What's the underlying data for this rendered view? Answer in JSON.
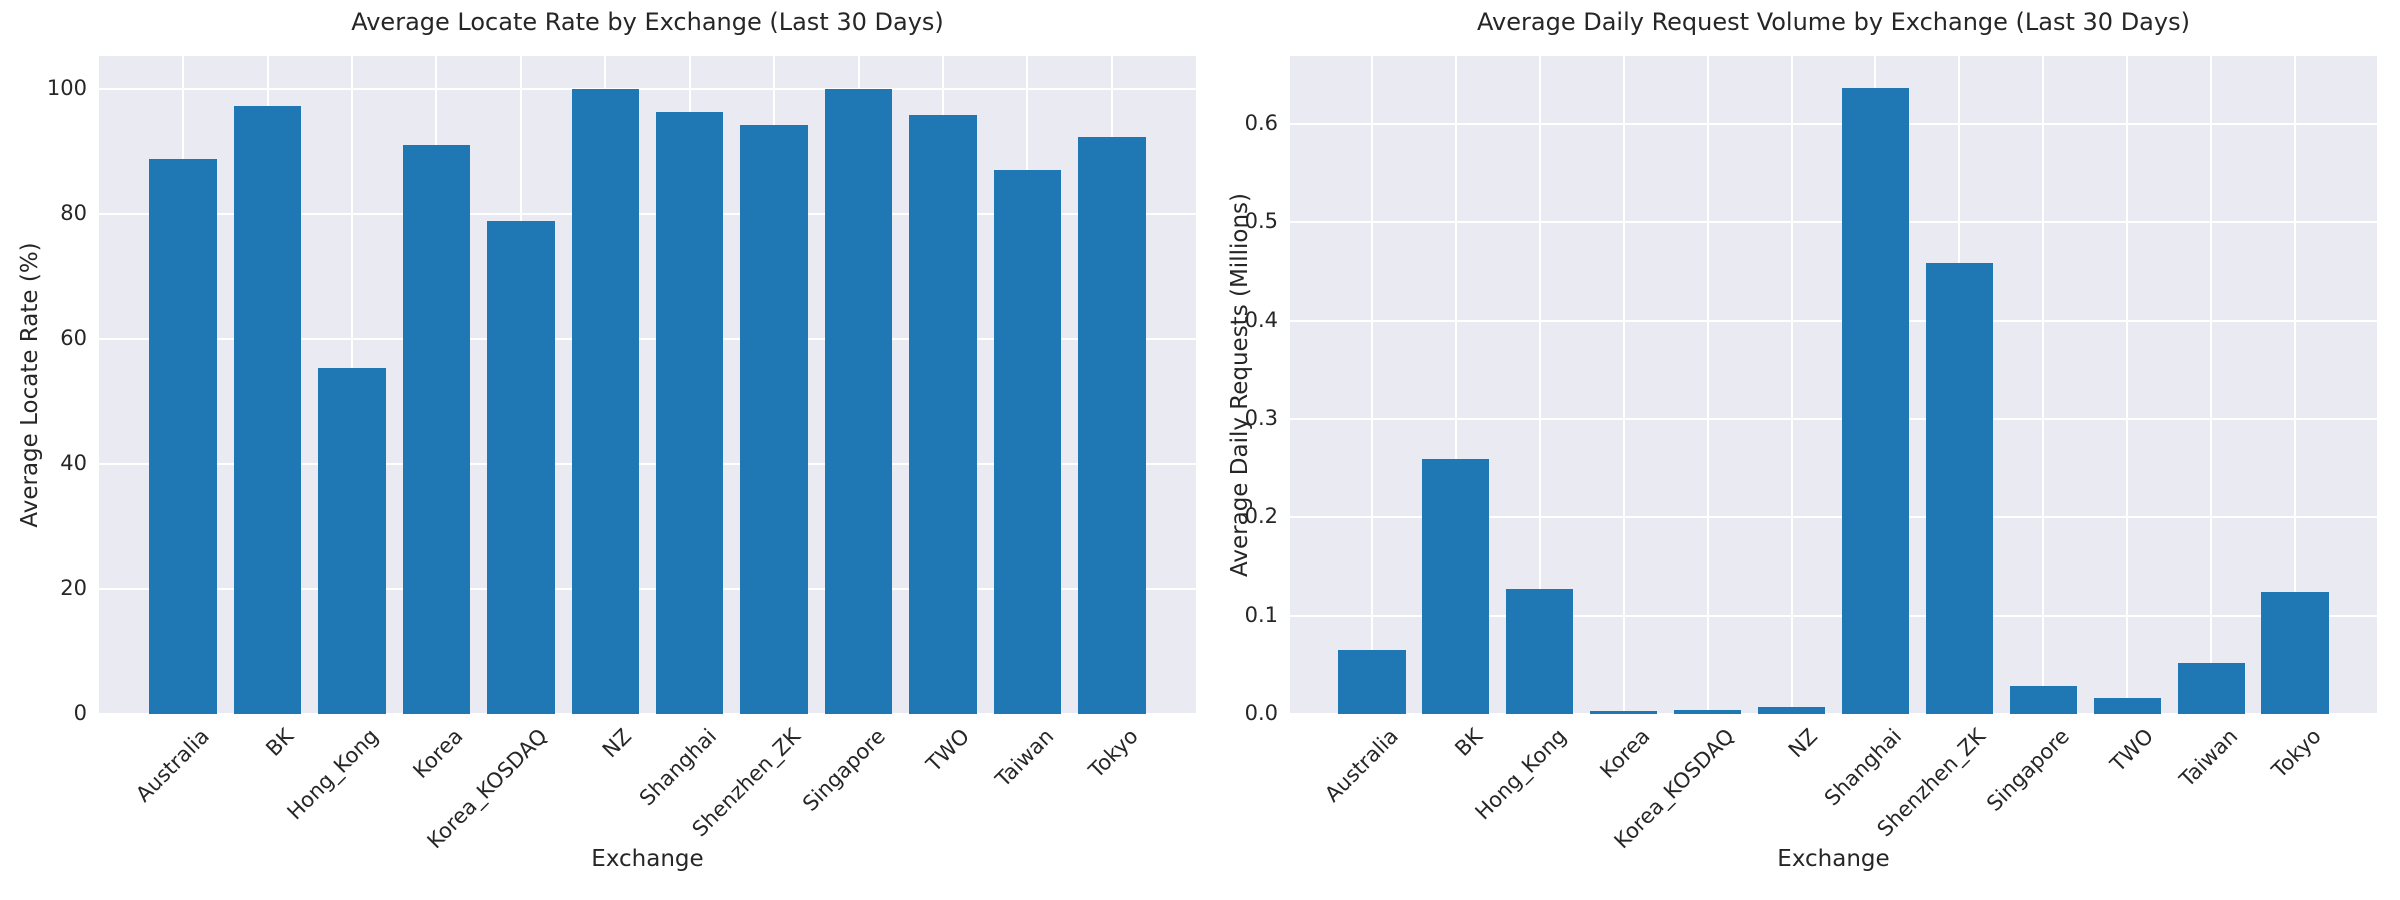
{
  "style": {
    "figure_bg": "#ffffff",
    "plot_bg": "#eaeaf2",
    "grid_color": "#ffffff",
    "bar_color": "#1f77b4",
    "text_color": "#262626"
  },
  "chart_data": [
    {
      "type": "bar",
      "title": "Average Locate Rate by Exchange (Last 30 Days)",
      "xlabel": "Exchange",
      "ylabel": "Average Locate Rate (%)",
      "categories": [
        "Australia",
        "BK",
        "Hong_Kong",
        "Korea",
        "Korea_KOSDAQ",
        "NZ",
        "Shanghai",
        "Shenzhen_ZK",
        "Singapore",
        "TWO",
        "Taiwan",
        "Tokyo"
      ],
      "values": [
        88.8,
        97.2,
        55.4,
        91.0,
        78.9,
        100.0,
        96.3,
        94.2,
        100.0,
        95.8,
        87.0,
        92.3
      ],
      "yticks": [
        0,
        20,
        40,
        60,
        80,
        100
      ],
      "ytick_labels": [
        "0",
        "20",
        "40",
        "60",
        "80",
        "100"
      ],
      "ylim": [
        0,
        105.2
      ],
      "grid": true,
      "legend_position": "none",
      "bar_color": "#1f77b4"
    },
    {
      "type": "bar",
      "title": "Average Daily Request Volume by Exchange (Last 30 Days)",
      "xlabel": "Exchange",
      "ylabel": "Average Daily Requests (Millions)",
      "categories": [
        "Australia",
        "BK",
        "Hong_Kong",
        "Korea",
        "Korea_KOSDAQ",
        "NZ",
        "Shanghai",
        "Shenzhen_ZK",
        "Singapore",
        "TWO",
        "Taiwan",
        "Tokyo"
      ],
      "values": [
        0.065,
        0.259,
        0.127,
        0.003,
        0.004,
        0.007,
        0.636,
        0.459,
        0.028,
        0.016,
        0.052,
        0.124
      ],
      "yticks": [
        0.0,
        0.1,
        0.2,
        0.3,
        0.4,
        0.5,
        0.6
      ],
      "ytick_labels": [
        "0.0",
        "0.1",
        "0.2",
        "0.3",
        "0.4",
        "0.5",
        "0.6"
      ],
      "ylim": [
        0,
        0.669
      ],
      "grid": true,
      "legend_position": "none",
      "bar_color": "#1f77b4"
    }
  ]
}
